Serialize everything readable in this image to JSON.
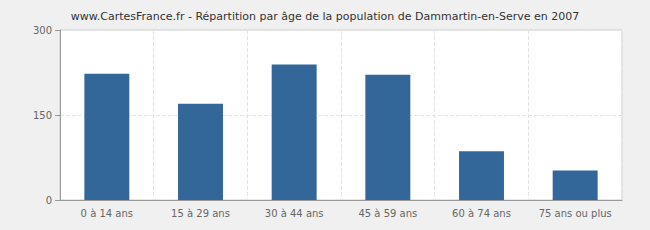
{
  "chart_data": {
    "type": "bar",
    "title": "www.CartesFrance.fr - Répartition par âge de la population de Dammartin-en-Serve en 2007",
    "categories": [
      "0 à 14 ans",
      "15 à 29 ans",
      "30 à 44 ans",
      "45 à 59 ans",
      "60 à 74 ans",
      "75 ans ou plus"
    ],
    "values": [
      223,
      170,
      239,
      221,
      86,
      52
    ],
    "color": "#336699",
    "ylim": [
      0,
      300
    ],
    "yticks": [
      0,
      150,
      300
    ],
    "grid": true
  }
}
